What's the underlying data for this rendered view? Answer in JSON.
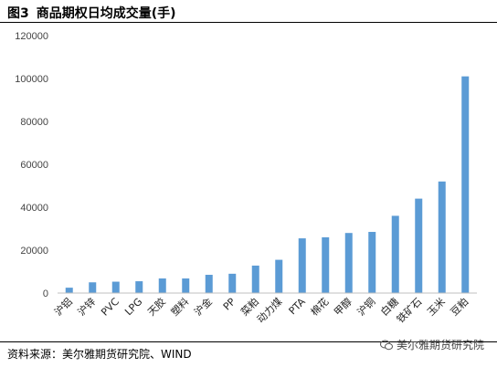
{
  "figure": {
    "number": "图3",
    "title": "商品期权日均成交量(手)"
  },
  "source": "资料来源：美尔雅期货研究院、WIND",
  "watermark": {
    "text": "美尔雅期货研究院",
    "icon": "wechat-icon"
  },
  "chart_data": {
    "type": "bar",
    "title": "商品期权日均成交量(手)",
    "xlabel": "",
    "ylabel": "",
    "ylim": [
      0,
      120000
    ],
    "yticks": [
      0,
      20000,
      40000,
      60000,
      80000,
      100000,
      120000
    ],
    "grid": false,
    "legend": "none",
    "bar_color": "#5b9bd5",
    "categories": [
      "沪铝",
      "沪锌",
      "PVC",
      "LPG",
      "天胶",
      "塑料",
      "沪金",
      "PP",
      "菜粕",
      "动力煤",
      "PTA",
      "棉花",
      "甲醇",
      "沪铜",
      "白糖",
      "铁矿石",
      "玉米",
      "豆粕"
    ],
    "values": [
      2500,
      5000,
      5300,
      5500,
      6800,
      6800,
      8500,
      9000,
      12800,
      15500,
      25500,
      26000,
      28000,
      28500,
      36000,
      44000,
      52000,
      101000
    ]
  }
}
